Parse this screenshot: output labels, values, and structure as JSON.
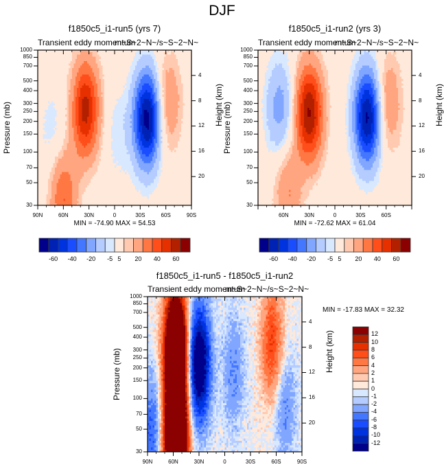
{
  "main_title": "DJF",
  "palette": [
    "#00008b",
    "#0022b4",
    "#0033e0",
    "#1a4dff",
    "#4477ff",
    "#80a6ff",
    "#b4ccff",
    "#d8e8ff",
    "#ffe9da",
    "#ffcab0",
    "#ffa57f",
    "#ff7844",
    "#ff4e1a",
    "#e63000",
    "#b32000",
    "#8b0000"
  ],
  "chart_data": [
    {
      "type": "heatmap",
      "subtype": "latitude-pressure contour",
      "title": "f1850c5_i1-run5 (yrs 7)",
      "left_string": "Transient eddy momentum",
      "right_string": "m~S~2~N~/s~S~2~N~",
      "xlabel": "",
      "ylabel": "Pressure (mb)",
      "ylabel_right": "Height (km)",
      "x_ticks": [
        "90N",
        "60N",
        "30N",
        "0",
        "30S",
        "60S",
        "90S"
      ],
      "y_ticks": [
        "30",
        "50",
        "70",
        "100",
        "150",
        "200",
        "250",
        "300",
        "400",
        "500",
        "700",
        "850",
        "1000"
      ],
      "y_right_ticks": [
        "4",
        "8",
        "12",
        "16",
        "20"
      ],
      "xlim": [
        90,
        -90
      ],
      "ylim_mb": [
        1000,
        30
      ],
      "min": -74.9,
      "max": 54.53,
      "min_label": "MIN = -74.90  MAX =  54.53",
      "colorbar": {
        "orientation": "horizontal",
        "labels": [
          "-60",
          "-40",
          "-20",
          "-5",
          "5",
          "20",
          "40",
          "60"
        ],
        "levels": [
          -70,
          -60,
          -50,
          -40,
          -30,
          -20,
          -10,
          -5,
          0,
          5,
          10,
          20,
          30,
          40,
          50,
          60
        ]
      },
      "features": [
        {
          "lat": 34,
          "p": 260,
          "value": 54,
          "sign": "positive"
        },
        {
          "lat": 60,
          "p": 35,
          "value": 30,
          "sign": "positive"
        },
        {
          "lat": -38,
          "p": 210,
          "value": -75,
          "sign": "negative"
        },
        {
          "lat": -62,
          "p": 300,
          "value": 20,
          "sign": "positive"
        },
        {
          "lat": 73,
          "p": 150,
          "value": -8,
          "sign": "negative"
        },
        {
          "lat": -5,
          "p": 150,
          "value": -8,
          "sign": "negative"
        }
      ]
    },
    {
      "type": "heatmap",
      "subtype": "latitude-pressure contour",
      "title": "f1850c5_i1-run2 (yrs 3)",
      "left_string": "Transient eddy momentum",
      "right_string": "m~S~2~N~/s~S~2~N~",
      "xlabel": "",
      "ylabel": "Pressure (mb)",
      "ylabel_right": "Height (km)",
      "x_ticks": [
        "60N",
        "30N",
        "0",
        "30S",
        "60S"
      ],
      "y_ticks": [
        "30",
        "50",
        "70",
        "100",
        "150",
        "200",
        "250",
        "300",
        "400",
        "500",
        "700",
        "850",
        "1000"
      ],
      "y_right_ticks": [
        "4",
        "8",
        "12",
        "16",
        "20"
      ],
      "xlim": [
        90,
        -90
      ],
      "ylim_mb": [
        1000,
        30
      ],
      "min": -72.62,
      "max": 61.04,
      "min_label": "MIN = -72.62  MAX =  61.04",
      "colorbar": {
        "orientation": "horizontal",
        "labels": [
          "-60",
          "-40",
          "-20",
          "-5",
          "5",
          "20",
          "40",
          "60"
        ],
        "levels": [
          -70,
          -60,
          -50,
          -40,
          -30,
          -20,
          -10,
          -5,
          0,
          5,
          10,
          20,
          30,
          40,
          50,
          60
        ]
      },
      "features": [
        {
          "lat": 30,
          "p": 240,
          "value": 61,
          "sign": "positive"
        },
        {
          "lat": 55,
          "p": 40,
          "value": 20,
          "sign": "positive"
        },
        {
          "lat": -38,
          "p": 220,
          "value": -72,
          "sign": "negative"
        },
        {
          "lat": -62,
          "p": 300,
          "value": 20,
          "sign": "positive"
        },
        {
          "lat": 65,
          "p": 270,
          "value": -25,
          "sign": "negative"
        }
      ]
    },
    {
      "type": "heatmap",
      "subtype": "latitude-pressure contour (difference)",
      "title": "f1850c5_i1-run5 - f1850c5_i1-run2",
      "left_string": "Transient eddy momentum",
      "right_string": "m~S~2~N~/s~S~2~N~",
      "xlabel": "",
      "ylabel": "Pressure (mb)",
      "ylabel_right": "Height (km)",
      "x_ticks": [
        "90N",
        "60N",
        "30N",
        "0",
        "30S",
        "60S",
        "90S"
      ],
      "y_ticks": [
        "30",
        "50",
        "70",
        "100",
        "150",
        "200",
        "250",
        "300",
        "400",
        "500",
        "700",
        "850",
        "1000"
      ],
      "y_right_ticks": [
        "4",
        "8",
        "12",
        "16",
        "20"
      ],
      "xlim": [
        90,
        -90
      ],
      "ylim_mb": [
        1000,
        30
      ],
      "min": -17.83,
      "max": 32.32,
      "min_label": "MIN = -17.83  MAX =  32.32",
      "colorbar": {
        "orientation": "vertical",
        "labels": [
          "12",
          "10",
          "8",
          "6",
          "4",
          "2",
          "1",
          "0",
          "-1",
          "-2",
          "-4",
          "-6",
          "-8",
          "-10",
          "-12"
        ],
        "levels": [
          -12,
          -10,
          -8,
          -6,
          -4,
          -2,
          -1,
          0,
          1,
          2,
          4,
          6,
          8,
          10,
          12
        ]
      },
      "features": [
        {
          "lat": 57,
          "p": 40,
          "value": 32,
          "sign": "positive"
        },
        {
          "lat": 57,
          "p": 300,
          "value": 30,
          "sign": "positive"
        },
        {
          "lat": 30,
          "p": 220,
          "value": -17,
          "sign": "negative"
        },
        {
          "lat": 85,
          "p": 50,
          "value": -6,
          "sign": "negative"
        },
        {
          "lat": -70,
          "p": 80,
          "value": -4,
          "sign": "negative"
        },
        {
          "lat": -10,
          "p": 180,
          "value": -4,
          "sign": "negative"
        },
        {
          "lat": -55,
          "p": 350,
          "value": 8,
          "sign": "positive"
        }
      ]
    }
  ]
}
